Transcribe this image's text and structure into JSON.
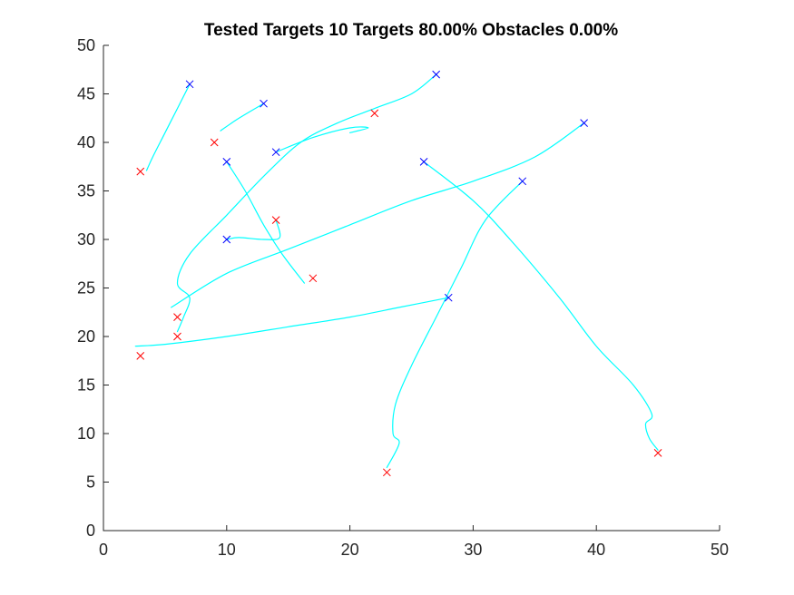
{
  "chart_data": {
    "type": "line",
    "title": "Tested Targets 10 Targets 80.00% Obstacles 0.00%",
    "xlabel": "",
    "ylabel": "",
    "xlim": [
      0,
      50
    ],
    "ylim": [
      0,
      50
    ],
    "xticks": [
      0,
      10,
      20,
      30,
      40,
      50
    ],
    "yticks": [
      0,
      5,
      10,
      15,
      20,
      25,
      30,
      35,
      40,
      45,
      50
    ],
    "grid": false,
    "colors": {
      "path": "#00ffff",
      "start": "#0000ff",
      "target": "#ff0000",
      "axis": "#262626"
    },
    "start_markers": [
      {
        "x": 7,
        "y": 46
      },
      {
        "x": 13,
        "y": 44
      },
      {
        "x": 27,
        "y": 47
      },
      {
        "x": 14,
        "y": 39
      },
      {
        "x": 10,
        "y": 38
      },
      {
        "x": 39,
        "y": 42
      },
      {
        "x": 26,
        "y": 38
      },
      {
        "x": 34,
        "y": 36
      },
      {
        "x": 10,
        "y": 30
      },
      {
        "x": 28,
        "y": 24
      }
    ],
    "target_markers": [
      {
        "x": 3,
        "y": 37
      },
      {
        "x": 9,
        "y": 40
      },
      {
        "x": 22,
        "y": 43
      },
      {
        "x": 14,
        "y": 32
      },
      {
        "x": 17,
        "y": 26
      },
      {
        "x": 6,
        "y": 22
      },
      {
        "x": 6,
        "y": 20
      },
      {
        "x": 3,
        "y": 18
      },
      {
        "x": 23,
        "y": 6
      },
      {
        "x": 45,
        "y": 8
      }
    ],
    "paths": [
      {
        "points": [
          [
            7,
            46
          ],
          [
            6,
            43.5
          ],
          [
            5,
            41
          ],
          [
            4,
            38.5
          ],
          [
            3.5,
            37.1
          ]
        ]
      },
      {
        "points": [
          [
            13,
            44
          ],
          [
            11,
            42.5
          ],
          [
            9.5,
            41.2
          ]
        ]
      },
      {
        "points": [
          [
            27,
            47
          ],
          [
            25,
            45
          ],
          [
            22,
            43.5
          ],
          [
            19,
            42
          ],
          [
            16,
            40
          ],
          [
            13,
            36.5
          ],
          [
            10,
            32.5
          ],
          [
            7,
            28.5
          ],
          [
            6,
            25.5
          ],
          [
            7,
            24
          ],
          [
            6.5,
            22
          ],
          [
            6,
            20.5
          ]
        ]
      },
      {
        "points": [
          [
            14,
            39
          ],
          [
            17,
            40.5
          ],
          [
            20,
            41.5
          ],
          [
            21.5,
            41.5
          ],
          [
            20,
            41
          ]
        ]
      },
      {
        "points": [
          [
            10,
            38
          ],
          [
            11.5,
            35
          ],
          [
            13,
            31.5
          ],
          [
            14.5,
            28.5
          ],
          [
            16.3,
            25.5
          ]
        ]
      },
      {
        "points": [
          [
            39,
            42
          ],
          [
            35,
            38.5
          ],
          [
            30,
            36
          ],
          [
            25,
            34
          ],
          [
            20,
            31.5
          ],
          [
            15,
            29
          ],
          [
            10,
            26.5
          ],
          [
            5.5,
            23
          ]
        ]
      },
      {
        "points": [
          [
            26,
            38
          ],
          [
            30,
            34
          ],
          [
            33,
            30
          ],
          [
            37,
            24
          ],
          [
            40,
            19
          ],
          [
            43,
            15
          ],
          [
            44.5,
            12
          ],
          [
            44,
            11
          ],
          [
            44.3,
            9.5
          ],
          [
            45,
            8.3
          ]
        ]
      },
      {
        "points": [
          [
            34,
            36
          ],
          [
            31,
            32
          ],
          [
            29,
            27
          ],
          [
            27,
            22
          ],
          [
            25,
            17
          ],
          [
            23.7,
            13
          ],
          [
            23.5,
            10
          ],
          [
            24,
            9
          ],
          [
            23,
            6.5
          ]
        ]
      },
      {
        "points": [
          [
            10,
            30
          ],
          [
            11,
            30.2
          ],
          [
            13,
            30
          ],
          [
            14.3,
            30.2
          ],
          [
            14,
            32
          ]
        ]
      },
      {
        "points": [
          [
            28,
            24
          ],
          [
            24,
            23
          ],
          [
            20,
            22
          ],
          [
            15,
            21
          ],
          [
            10,
            20
          ],
          [
            5,
            19.2
          ],
          [
            2.6,
            19
          ]
        ]
      }
    ]
  }
}
